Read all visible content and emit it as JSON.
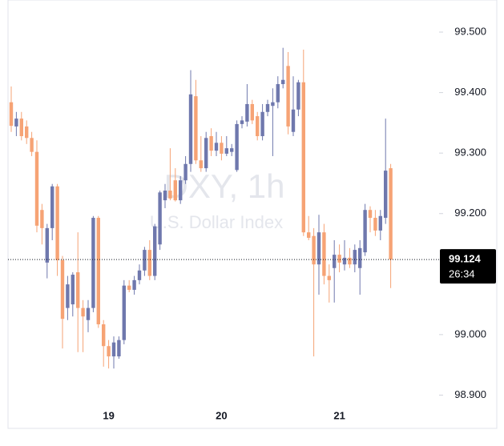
{
  "chart_data": {
    "type": "candlestick",
    "watermark_title": "DXY, 1h",
    "watermark_subtitle": "U.S. Dollar Index",
    "price_label": "99.124",
    "countdown": "26:34",
    "up_color": "#6f78ad",
    "down_color": "#f6a375",
    "categories": [
      null,
      null,
      null,
      null,
      null,
      null,
      null,
      null,
      null,
      null,
      null,
      null,
      null,
      null,
      null,
      null,
      null,
      null,
      null,
      "19",
      null,
      null,
      null,
      null,
      null,
      null,
      null,
      null,
      null,
      null,
      null,
      null,
      null,
      null,
      null,
      null,
      null,
      null,
      null,
      null,
      null,
      "20",
      null,
      null,
      null,
      null,
      null,
      null,
      null,
      null,
      null,
      null,
      null,
      null,
      null,
      null,
      null,
      null,
      null,
      null,
      null,
      null,
      null,
      null,
      "21",
      null,
      null,
      null,
      null,
      null,
      null,
      null,
      null,
      null,
      null
    ],
    "open": [
      99.384,
      99.344,
      99.357,
      99.344,
      99.325,
      99.302,
      99.206,
      99.119,
      99.176,
      99.245,
      99.123,
      99.044,
      99.05,
      99.103,
      99.044,
      99.024,
      99.044,
      99.193,
      99.017,
      98.981,
      98.964,
      98.964,
      98.991,
      99.081,
      99.074,
      99.09,
      99.106,
      99.14,
      99.097,
      99.149,
      99.222,
      99.238,
      99.255,
      99.222,
      99.255,
      99.282,
      99.394,
      99.288,
      99.275,
      99.328,
      99.304,
      99.317,
      99.299,
      99.302,
      99.272,
      99.348,
      99.352,
      99.381,
      99.361,
      99.328,
      99.368,
      99.378,
      99.384,
      99.414,
      99.444,
      99.335,
      99.372,
      99.417,
      99.169,
      99.163,
      99.116,
      99.169,
      99.097,
      99.11,
      99.132,
      99.116,
      99.127,
      99.116,
      99.11,
      99.136,
      99.206,
      99.193,
      99.172,
      99.193,
      99.275
    ],
    "high": [
      99.41,
      99.368,
      99.368,
      99.354,
      99.335,
      99.321,
      99.216,
      99.183,
      99.249,
      99.249,
      99.13,
      99.097,
      99.103,
      99.169,
      99.057,
      99.057,
      99.196,
      99.196,
      99.024,
      98.991,
      98.997,
      98.997,
      99.09,
      99.09,
      99.097,
      99.116,
      99.145,
      99.156,
      99.183,
      99.238,
      99.249,
      99.308,
      99.275,
      99.262,
      99.295,
      99.437,
      99.421,
      99.328,
      99.335,
      99.341,
      99.335,
      99.328,
      99.328,
      99.315,
      99.354,
      99.361,
      99.414,
      99.388,
      99.368,
      99.381,
      99.388,
      99.407,
      99.427,
      99.474,
      99.467,
      99.427,
      99.421,
      99.471,
      99.196,
      99.176,
      99.198,
      99.183,
      99.116,
      99.156,
      99.149,
      99.156,
      99.143,
      99.149,
      99.156,
      99.216,
      99.212,
      99.206,
      99.206,
      99.357,
      99.282
    ],
    "low": [
      99.335,
      99.328,
      99.321,
      99.315,
      99.295,
      99.169,
      99.149,
      99.093,
      99.156,
      99.097,
      98.977,
      99.024,
      99.03,
      98.971,
      98.971,
      99.004,
      99.037,
      99.011,
      98.947,
      98.944,
      98.944,
      98.96,
      98.984,
      99.07,
      99.066,
      99.083,
      99.097,
      99.09,
      99.09,
      99.14,
      99.209,
      99.222,
      99.22,
      99.216,
      99.249,
      99.269,
      99.282,
      99.269,
      99.269,
      99.295,
      99.295,
      99.288,
      99.295,
      99.295,
      99.269,
      99.341,
      99.344,
      99.348,
      99.321,
      99.321,
      99.361,
      99.295,
      99.374,
      99.407,
      99.331,
      99.328,
      99.361,
      99.163,
      99.156,
      98.964,
      99.066,
      99.083,
      99.053,
      99.053,
      99.103,
      99.106,
      99.11,
      99.103,
      99.066,
      99.13,
      99.169,
      99.163,
      99.156,
      99.183,
      99.077
    ],
    "close": [
      99.345,
      99.357,
      99.328,
      99.325,
      99.302,
      99.18,
      99.176,
      99.176,
      99.245,
      99.123,
      99.026,
      99.083,
      99.099,
      99.044,
      99.03,
      99.044,
      99.193,
      99.017,
      98.981,
      98.964,
      98.987,
      98.991,
      99.081,
      99.074,
      99.09,
      99.106,
      99.14,
      99.097,
      99.179,
      99.235,
      99.238,
      99.225,
      99.222,
      99.255,
      99.282,
      99.397,
      99.288,
      99.275,
      99.325,
      99.304,
      99.317,
      99.299,
      99.308,
      99.308,
      99.348,
      99.354,
      99.381,
      99.354,
      99.328,
      99.368,
      99.381,
      99.384,
      99.414,
      99.421,
      99.344,
      99.372,
      99.417,
      99.169,
      99.16,
      99.116,
      99.169,
      99.097,
      99.09,
      99.132,
      99.119,
      99.127,
      99.116,
      99.14,
      99.143,
      99.206,
      99.193,
      99.172,
      99.196,
      99.271,
      99.124
    ],
    "ylim": [
      98.845,
      99.553
    ],
    "yticks": [
      {
        "value": 98.9,
        "label": "98.900"
      },
      {
        "value": 99.0,
        "label": "99.000"
      },
      {
        "value": 99.2,
        "label": "99.200"
      },
      {
        "value": 99.3,
        "label": "99.300"
      },
      {
        "value": 99.4,
        "label": "99.400"
      },
      {
        "value": 99.5,
        "label": "99.500"
      }
    ]
  }
}
